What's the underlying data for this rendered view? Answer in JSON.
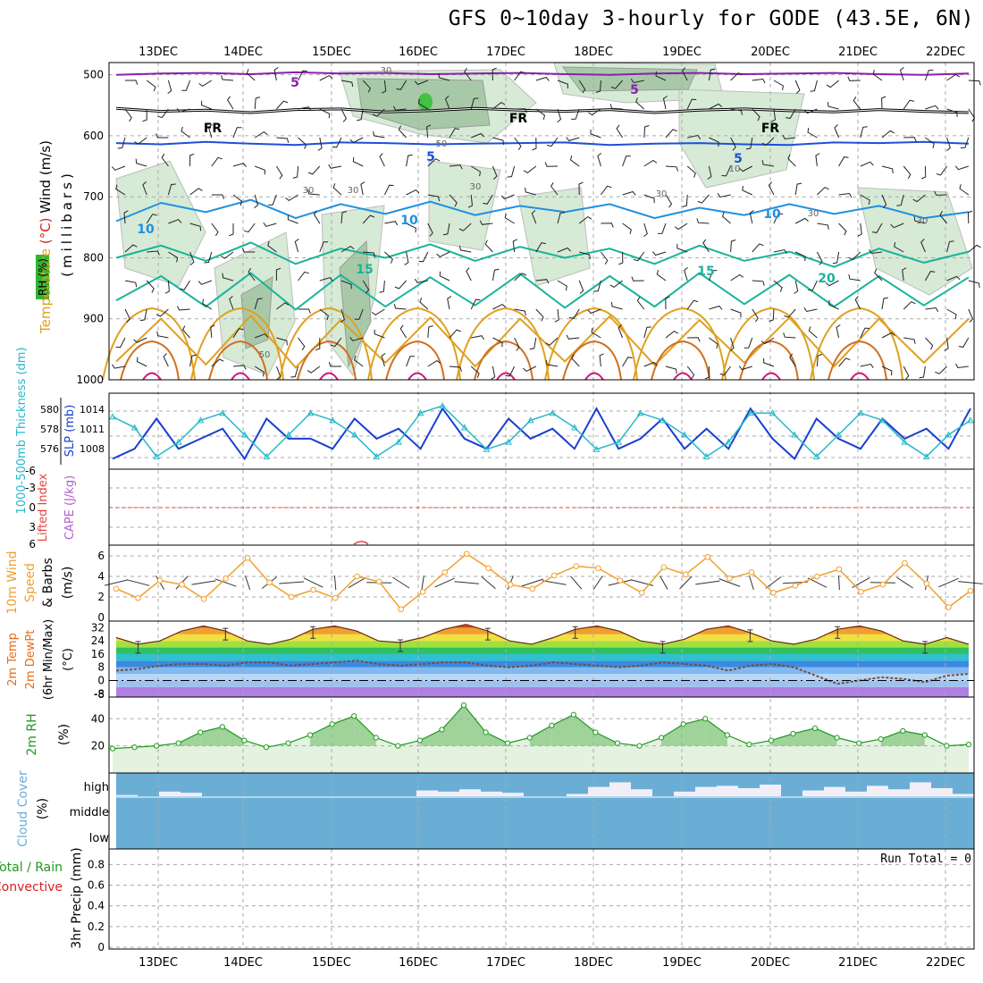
{
  "title": "GFS 0~10day 3-hourly for GODE (43.5E, 6N)",
  "date_labels": [
    "13DEC",
    "14DEC",
    "15DEC",
    "16DEC",
    "17DEC",
    "18DEC",
    "19DEC",
    "20DEC",
    "21DEC",
    "22DEC"
  ],
  "colors": {
    "grid": "#aaaaaa",
    "rh_fill": "#d6ead6",
    "rh_dark": "#a8c9a8",
    "temp_violet": "#8a1fb0",
    "temp_blue": "#1f4fd8",
    "temp_sky": "#1e90e0",
    "temp_teal": "#18b49a",
    "temp_orange": "#e0a020",
    "thickness": "#1a3fd0",
    "slp": "#25b8c8",
    "lifted": "#e84040",
    "wind10": "#f0a030",
    "temp_fill": "#e86a1a",
    "dewpt": "#7a4a3a",
    "rh2m": "#1e9a1e",
    "cloud": "#6aaed6",
    "precip_label": "#d82020"
  },
  "chart_data": [
    {
      "type": "line",
      "name": "upper-air",
      "title": "Temperature (°C) / Wind (m/s) / RH (%)",
      "ylabel_parts": [
        "Temperature",
        "(°C)",
        "Wind",
        "(m/s)"
      ],
      "ylabel_units": "(millibars)",
      "rh_label": "RH (%)",
      "y_ticks": [
        500,
        600,
        700,
        800,
        900,
        1000
      ],
      "ylim": [
        480,
        1000
      ],
      "isotherm_labels": [
        {
          "text": "5",
          "level": "500"
        },
        {
          "text": "5",
          "level": "500"
        },
        {
          "text": "FR",
          "level": "550"
        },
        {
          "text": "FR",
          "level": "550"
        },
        {
          "text": "FR",
          "level": "550"
        },
        {
          "text": "5",
          "level": "610"
        },
        {
          "text": "5",
          "level": "610"
        },
        {
          "text": "10",
          "level": "720"
        },
        {
          "text": "10",
          "level": "720"
        },
        {
          "text": "10",
          "level": "720"
        },
        {
          "text": "15",
          "level": "800"
        },
        {
          "text": "15",
          "level": "800"
        },
        {
          "text": "20",
          "level": "820"
        }
      ],
      "rh_labels": [
        "30",
        "50",
        "30",
        "30",
        "50",
        "30",
        "10",
        "30",
        "30",
        "30"
      ],
      "series": [
        {
          "name": "5C-500mb",
          "values": [
            500,
            498,
            497,
            499,
            496,
            498,
            497,
            499,
            498,
            497,
            499,
            500,
            498,
            497,
            499,
            498,
            497,
            499,
            500,
            498
          ]
        },
        {
          "name": "freezing",
          "values": [
            555,
            560,
            558,
            562,
            557,
            556,
            561,
            559,
            555,
            558,
            560,
            557,
            562,
            558,
            556,
            559,
            561,
            557,
            560,
            562
          ]
        },
        {
          "name": "5C-610mb",
          "values": [
            612,
            614,
            610,
            613,
            615,
            611,
            612,
            614,
            613,
            612,
            611,
            615,
            613,
            612,
            614,
            615,
            611,
            612,
            610,
            613
          ]
        },
        {
          "name": "10C",
          "values": [
            740,
            710,
            725,
            705,
            735,
            712,
            728,
            708,
            730,
            715,
            725,
            712,
            735,
            718,
            730,
            712,
            728,
            715,
            735,
            725
          ]
        },
        {
          "name": "15C",
          "values": [
            800,
            780,
            805,
            775,
            810,
            785,
            800,
            778,
            805,
            782,
            800,
            785,
            810,
            780,
            805,
            790,
            815,
            785,
            808,
            790
          ]
        },
        {
          "name": "20C",
          "values": [
            870,
            830,
            880,
            825,
            885,
            828,
            880,
            832,
            878,
            826,
            882,
            830,
            880,
            825,
            876,
            828,
            880,
            830,
            878,
            832
          ]
        },
        {
          "name": "25C",
          "values": [
            970,
            900,
            975,
            895,
            980,
            902,
            972,
            898,
            978,
            900,
            970,
            896,
            976,
            902,
            972,
            898,
            978,
            900,
            972,
            900
          ]
        }
      ]
    },
    {
      "type": "line",
      "name": "thickness-slp",
      "ylabel_left": "1000-500mb Thickness (dm)",
      "ylabel_right": "SLP (mb)",
      "left_ticks": [
        "580",
        "578",
        "576"
      ],
      "right_ticks": [
        "1014",
        "1011",
        "1008"
      ],
      "series": [
        {
          "name": "thickness",
          "values": [
            576,
            577,
            580,
            577,
            578,
            579,
            576,
            580,
            578,
            578,
            577,
            580,
            578,
            579,
            577,
            581,
            578,
            577,
            580,
            578,
            579,
            577,
            581,
            577,
            578,
            580,
            577,
            579,
            577,
            581,
            578,
            576,
            580,
            578,
            577,
            580,
            578,
            579,
            577,
            581
          ]
        },
        {
          "name": "slp",
          "values": [
            1013.5,
            1012,
            1008,
            1010,
            1013,
            1014,
            1011,
            1008,
            1011,
            1014,
            1013,
            1011,
            1008,
            1010,
            1014,
            1015,
            1012,
            1009,
            1010,
            1013,
            1014,
            1012,
            1009,
            1010,
            1014,
            1013,
            1011,
            1008,
            1010,
            1014,
            1014,
            1011,
            1008,
            1011,
            1014,
            1013,
            1010,
            1008,
            1011,
            1013
          ]
        }
      ]
    },
    {
      "type": "line",
      "name": "stability",
      "ylabel_left": "Lifted Index",
      "ylabel_right": "CAPE (J/kg)",
      "y_ticks": [
        "-6",
        "-3",
        "0",
        "3",
        "6"
      ],
      "lifted_index": [
        6,
        6,
        6,
        6,
        6,
        6,
        6,
        6,
        6,
        6
      ],
      "cape": [
        0,
        0,
        0,
        0,
        0,
        0,
        0,
        0,
        0,
        0
      ]
    },
    {
      "type": "line",
      "name": "wind10m",
      "ylabel_parts": [
        "10m Wind",
        "Speed",
        "& Barbs",
        "(m/s)"
      ],
      "y_ticks": [
        "0",
        "2",
        "4",
        "6"
      ],
      "ylim": [
        0,
        6.7
      ],
      "values": [
        2.8,
        1.9,
        3.6,
        3.2,
        1.8,
        3.8,
        5.8,
        3.4,
        2.0,
        2.7,
        1.9,
        4.0,
        3.5,
        0.8,
        2.5,
        4.4,
        6.2,
        4.8,
        3.2,
        2.8,
        4.1,
        5.0,
        4.8,
        3.6,
        2.4,
        4.9,
        4.2,
        5.9,
        3.8,
        4.4,
        2.4,
        3.1,
        4.0,
        4.7,
        2.5,
        3.2,
        5.3,
        3.3,
        1.0,
        2.6
      ]
    },
    {
      "type": "area",
      "name": "temp2m",
      "ylabel_parts": [
        "2m Temp",
        "2m DewPt",
        "(6hr Min/Max)",
        "(°C)"
      ],
      "y_ticks": [
        "32",
        "24",
        "16",
        "8",
        "0",
        "-8"
      ],
      "ylim": [
        -10,
        36
      ],
      "temperature": [
        26,
        22,
        24,
        30,
        33,
        30,
        24,
        22,
        25,
        31,
        33,
        30,
        24,
        23,
        26,
        31,
        34,
        30,
        24,
        22,
        26,
        31,
        33,
        30,
        24,
        22,
        25,
        31,
        33,
        29,
        24,
        22,
        25,
        31,
        33,
        30,
        24,
        22,
        26,
        22
      ],
      "dewpoint": [
        6,
        7,
        9,
        10,
        10,
        9,
        11,
        11,
        9,
        10,
        11,
        12,
        10,
        9,
        10,
        11,
        11,
        9,
        8,
        9,
        11,
        10,
        9,
        8,
        9,
        11,
        10,
        9,
        6,
        9,
        10,
        8,
        3,
        -2,
        0,
        2,
        1,
        -1,
        3,
        4
      ]
    },
    {
      "type": "area",
      "name": "rh2m",
      "ylabel_parts": [
        "2m RH",
        "(%)"
      ],
      "y_ticks": [
        "40",
        "20"
      ],
      "ylim": [
        0,
        56
      ],
      "values": [
        18,
        19,
        20,
        22,
        30,
        34,
        24,
        19,
        22,
        28,
        36,
        42,
        26,
        20,
        24,
        32,
        50,
        30,
        22,
        26,
        35,
        43,
        30,
        22,
        20,
        26,
        36,
        40,
        28,
        21,
        24,
        29,
        33,
        26,
        22,
        25,
        31,
        28,
        20,
        21
      ]
    },
    {
      "type": "bar",
      "name": "cloud-cover",
      "ylabel_parts": [
        "Cloud Cover",
        "(%)"
      ],
      "levels": [
        "high",
        "middle",
        "low"
      ],
      "high": [
        5,
        0,
        20,
        15,
        0,
        0,
        0,
        0,
        0,
        0,
        0,
        0,
        0,
        0,
        25,
        20,
        30,
        20,
        15,
        0,
        0,
        10,
        40,
        60,
        30,
        0,
        20,
        40,
        45,
        35,
        50,
        0,
        25,
        40,
        20,
        45,
        30,
        60,
        35,
        10
      ]
    },
    {
      "type": "bar",
      "name": "precip",
      "ylabel_parts": [
        "Total / Rain",
        "Convective",
        "3hr Precip (mm)"
      ],
      "y_ticks": [
        "0.8",
        "0.6",
        "0.4",
        "0.2",
        "0"
      ],
      "run_total": "Run Total = 0",
      "values": [
        0,
        0,
        0,
        0,
        0,
        0,
        0,
        0,
        0,
        0
      ]
    }
  ]
}
